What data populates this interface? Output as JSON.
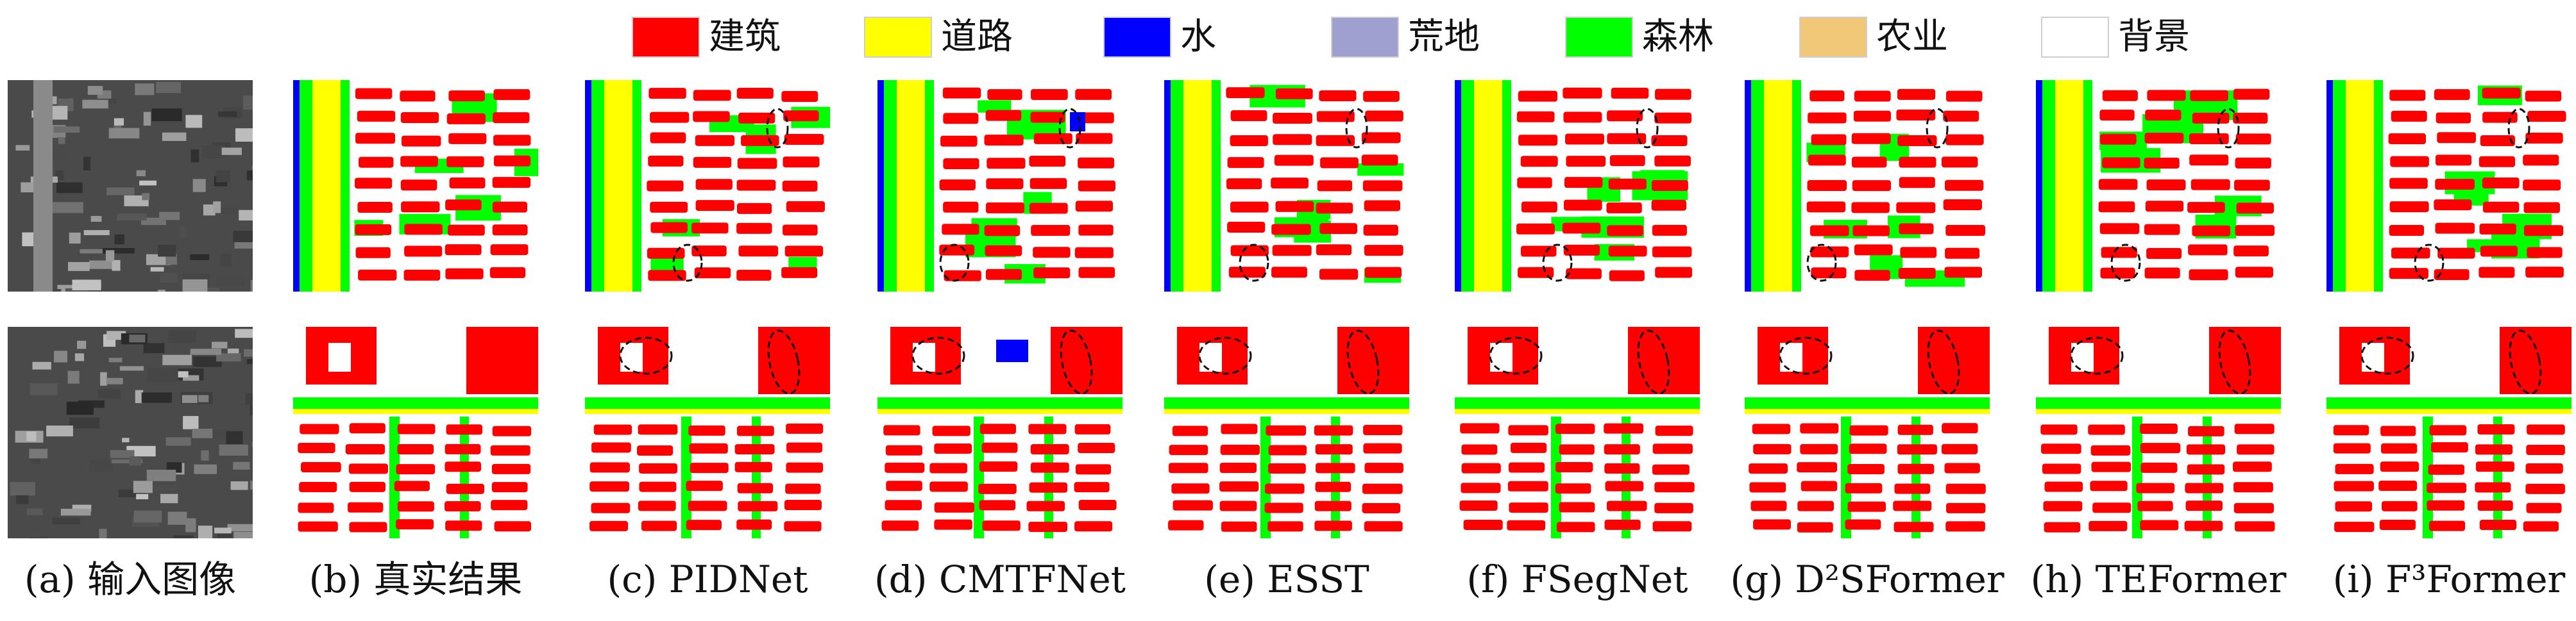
{
  "legend": [
    {
      "label": "建筑",
      "color": "#ff0000"
    },
    {
      "label": "道路",
      "color": "#ffff00"
    },
    {
      "label": "水",
      "color": "#0000ff"
    },
    {
      "label": "荒地",
      "color": "#9f9fd0"
    },
    {
      "label": "森林",
      "color": "#00ff00"
    },
    {
      "label": "农业",
      "color": "#f0c878"
    },
    {
      "label": "背景",
      "color": "#ffffff"
    }
  ],
  "columns": [
    {
      "prefix": "(a) ",
      "name": "输入图像",
      "kind": "input"
    },
    {
      "prefix": "(b) ",
      "name": "真实结果",
      "kind": "gt"
    },
    {
      "prefix": "(c) ",
      "name": "PIDNet",
      "kind": "pred"
    },
    {
      "prefix": "(d) ",
      "name": "CMTFNet",
      "kind": "pred"
    },
    {
      "prefix": "(e) ",
      "name": "ESST",
      "kind": "pred"
    },
    {
      "prefix": "(f) ",
      "name": "FSegNet",
      "kind": "pred"
    },
    {
      "prefix": "(g) ",
      "name": "D²SFormer",
      "kind": "pred"
    },
    {
      "prefix": "(h) ",
      "name": "TEFormer",
      "kind": "pred"
    },
    {
      "prefix": "(i) ",
      "name": "F³Former",
      "kind": "pred"
    }
  ],
  "colors": {
    "building": "#ff0000",
    "road": "#ffff00",
    "water": "#0000ff",
    "forest": "#00ff00",
    "background": "#ffffff",
    "highlight_ellipse": "#111111"
  }
}
